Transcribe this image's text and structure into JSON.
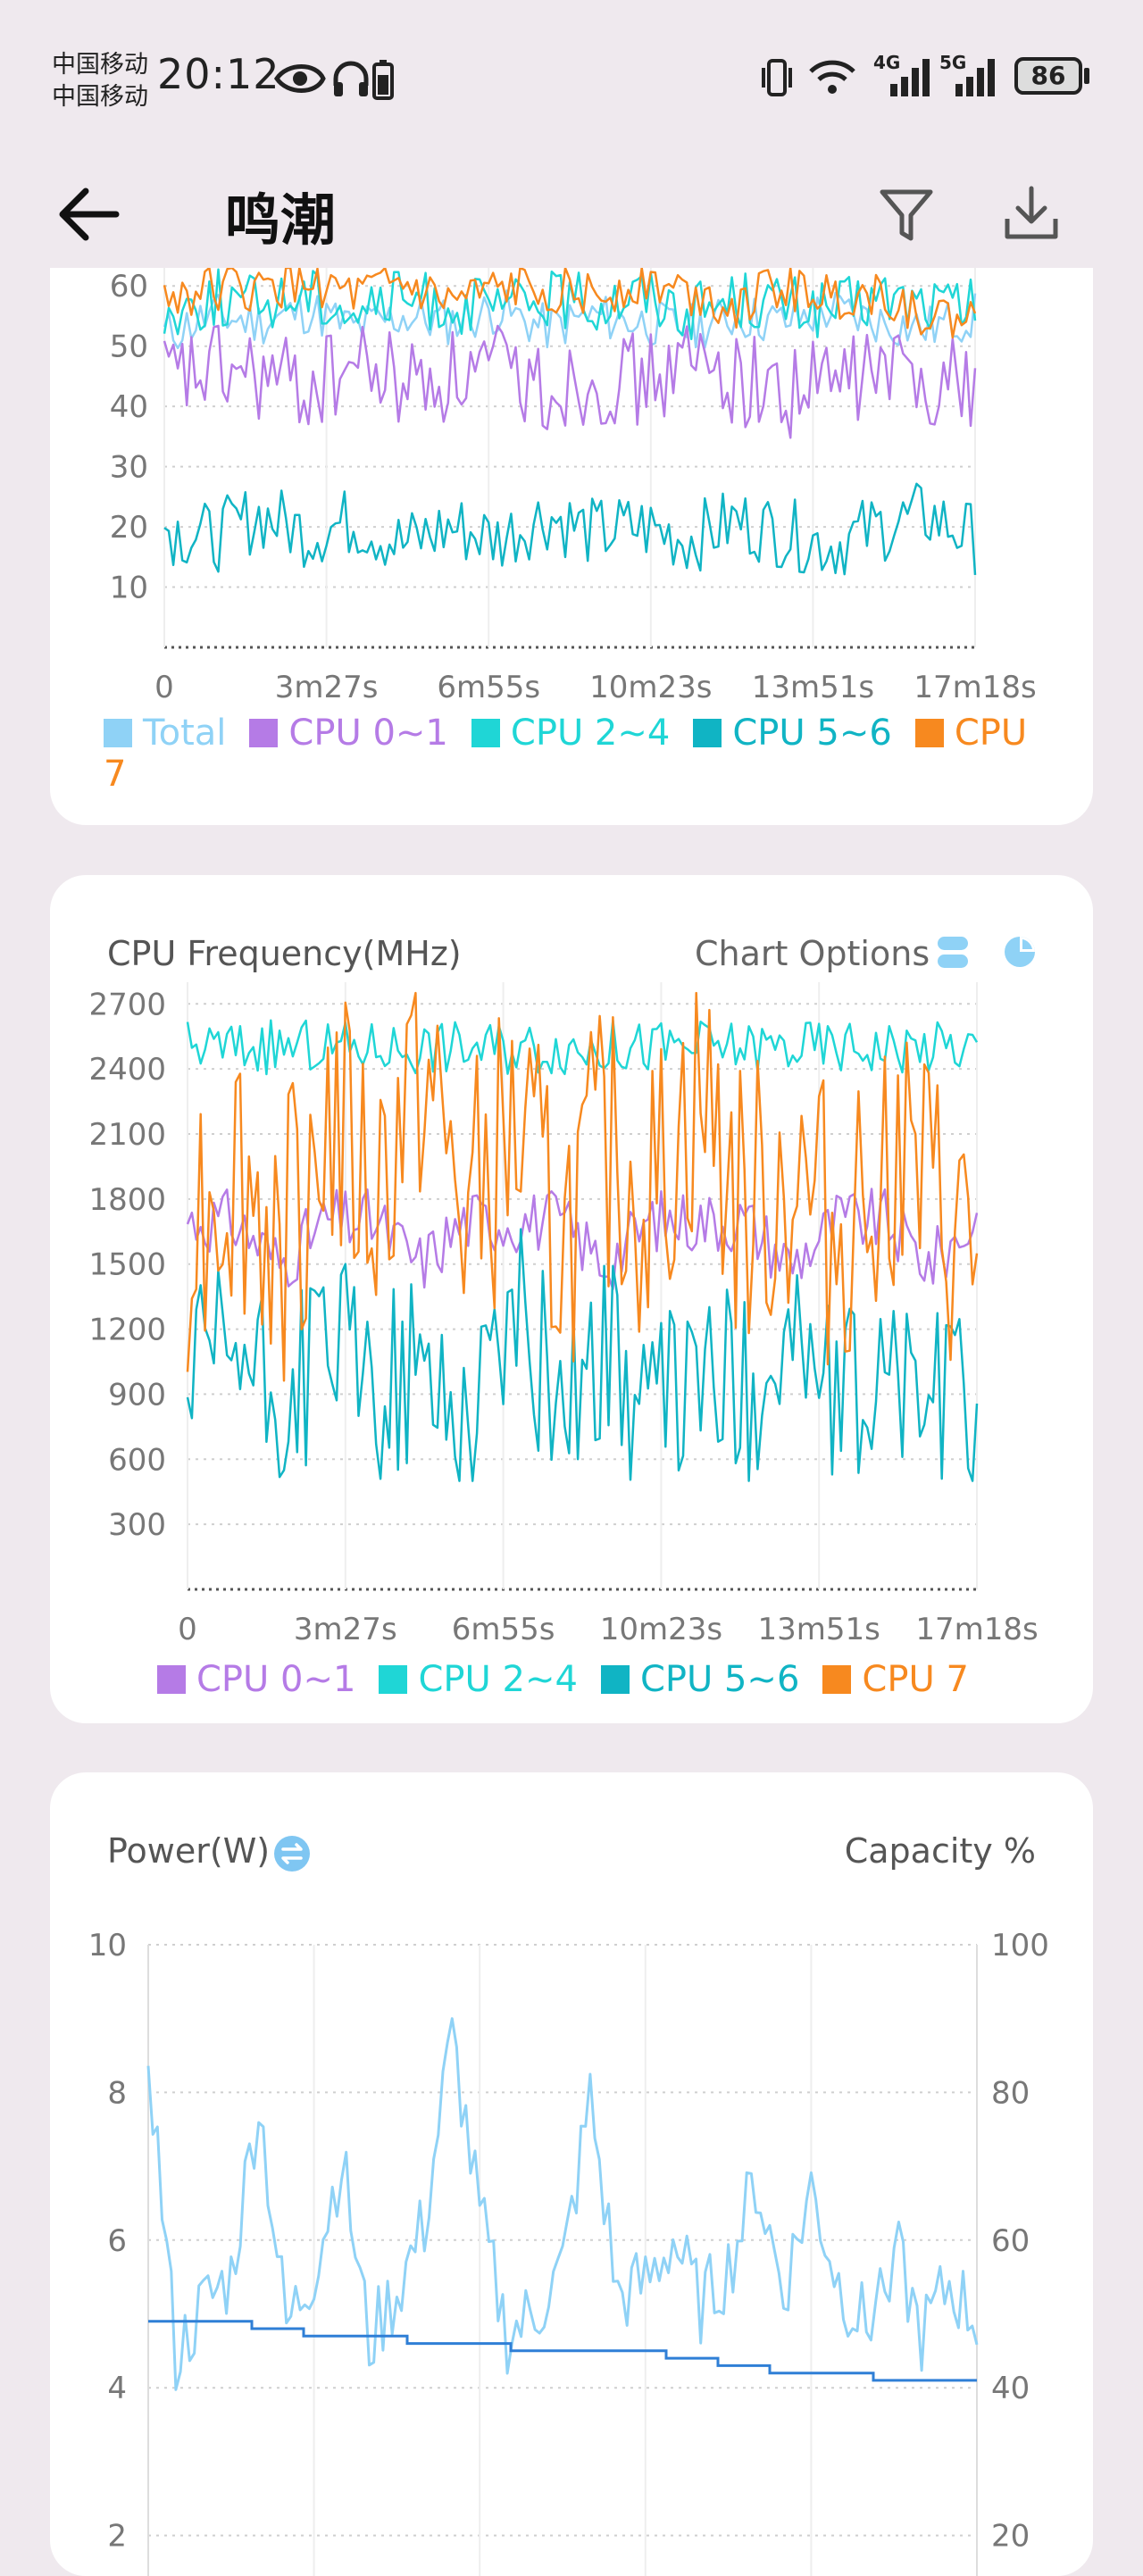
{
  "status_bar": {
    "carrier_1": "中国移动",
    "carrier_2": "中国移动",
    "time": "20:12",
    "battery": "86",
    "net_1": "4G",
    "net_2": "5G"
  },
  "app_bar": {
    "title": "鸣潮",
    "icons": [
      "back-arrow-icon",
      "filter-icon",
      "download-icon"
    ]
  },
  "colors": {
    "total": "#8fd2f6",
    "cpu01": "#b57be6",
    "cpu24": "#1fd6d6",
    "cpu56": "#10b4c4",
    "cpu7": "#f7891f",
    "capacity": "#2f7fd6"
  },
  "chart_usage": {
    "legend": [
      {
        "label": "Total",
        "color": "#8fd2f6"
      },
      {
        "label": "CPU 0~1",
        "color": "#b57be6"
      },
      {
        "label": "CPU 2~4",
        "color": "#1fd6d6"
      },
      {
        "label": "CPU 5~6",
        "color": "#10b4c4"
      },
      {
        "label": "CPU",
        "color": "#f7891f"
      }
    ],
    "legend_wrap": "7"
  },
  "chart_freq": {
    "title": "CPU Frequency(MHz)",
    "options_label": "Chart Options",
    "legend": [
      {
        "label": "CPU 0~1",
        "color": "#b57be6"
      },
      {
        "label": "CPU 2~4",
        "color": "#1fd6d6"
      },
      {
        "label": "CPU 5~6",
        "color": "#10b4c4"
      },
      {
        "label": "CPU 7",
        "color": "#f7891f"
      }
    ]
  },
  "chart_power": {
    "title": "Power(W)",
    "right_label": "Capacity %"
  },
  "chart_data": [
    {
      "type": "line",
      "title": "",
      "x_ticks": [
        "0",
        "3m27s",
        "6m55s",
        "10m23s",
        "13m51s",
        "17m18s"
      ],
      "y_ticks": [
        10,
        20,
        30,
        40,
        50,
        60
      ],
      "ylim": [
        0,
        63
      ],
      "series": [
        {
          "name": "Total",
          "values": [
            52,
            55,
            54,
            56,
            53,
            55,
            54,
            56,
            53,
            55,
            54,
            53,
            55,
            54,
            56,
            54,
            53,
            55
          ]
        },
        {
          "name": "CPU 0~1",
          "values": [
            44,
            46,
            45,
            43,
            47,
            44,
            45,
            46,
            43,
            45,
            44,
            47,
            45,
            42,
            44,
            46,
            45,
            44
          ]
        },
        {
          "name": "CPU 2~4",
          "values": [
            55,
            58,
            57,
            59,
            56,
            58,
            57,
            56,
            58,
            57,
            59,
            56,
            58,
            57,
            56,
            58,
            57,
            56
          ]
        },
        {
          "name": "CPU 5~6",
          "values": [
            20,
            18,
            22,
            19,
            21,
            17,
            20,
            18,
            22,
            19,
            20,
            18,
            21,
            19,
            17,
            20,
            22,
            18
          ]
        },
        {
          "name": "CPU 7",
          "values": [
            58,
            60,
            59,
            61,
            58,
            60,
            57,
            59,
            60,
            58,
            61,
            59,
            57,
            60,
            58,
            59,
            55,
            54
          ]
        }
      ]
    },
    {
      "type": "line",
      "title": "CPU Frequency(MHz)",
      "x_ticks": [
        "0",
        "3m27s",
        "6m55s",
        "10m23s",
        "13m51s",
        "17m18s"
      ],
      "y_ticks": [
        300,
        600,
        900,
        1200,
        1500,
        1800,
        2100,
        2400,
        2700
      ],
      "ylim": [
        0,
        2800
      ],
      "series": [
        {
          "name": "CPU 0~1",
          "values": [
            1700,
            1700,
            1500,
            1700,
            1700,
            1500,
            1700,
            1700,
            1700,
            1500,
            1700,
            1700,
            1700,
            1500,
            1700,
            1700,
            1500,
            1700
          ]
        },
        {
          "name": "CPU 2~4",
          "values": [
            2500,
            2500,
            2500,
            2500,
            2500,
            2500,
            2500,
            2500,
            2500,
            2500,
            2500,
            2500,
            2500,
            2500,
            2500,
            2500,
            2500,
            2500
          ]
        },
        {
          "name": "CPU 5~6",
          "values": [
            900,
            1100,
            800,
            1200,
            900,
            1000,
            800,
            1300,
            900,
            1100,
            800,
            1000,
            900,
            1200,
            800,
            1000,
            900,
            800
          ]
        },
        {
          "name": "CPU 7",
          "values": [
            1700,
            2000,
            1600,
            2200,
            1800,
            2400,
            1700,
            2100,
            1600,
            2000,
            1800,
            2300,
            1700,
            1900,
            1600,
            2100,
            1800,
            1500
          ]
        }
      ]
    },
    {
      "type": "line",
      "title": "Power(W)",
      "y_ticks_left": [
        2,
        4,
        6,
        8,
        10
      ],
      "y_ticks_right": [
        20,
        40,
        60,
        80,
        100
      ],
      "ylim": [
        0,
        10
      ],
      "series": [
        {
          "name": "Power",
          "values": [
            8.6,
            4.4,
            5.1,
            5.5,
            7.9,
            4.8,
            5.6,
            7.1,
            4.6,
            5.3,
            6.2,
            8.8,
            6.3,
            4.7,
            5.0,
            5.6,
            7.9,
            5.2,
            5.4,
            6.0,
            5.1,
            5.6,
            6.8,
            5.3,
            6.7,
            5.4,
            4.8,
            5.9,
            4.7,
            5.4,
            4.9
          ]
        },
        {
          "name": "Capacity %",
          "axis": "right",
          "values": [
            49,
            49,
            48,
            47,
            47,
            46,
            46,
            45,
            45,
            45,
            44,
            43,
            42,
            42,
            41,
            41
          ]
        }
      ]
    }
  ]
}
